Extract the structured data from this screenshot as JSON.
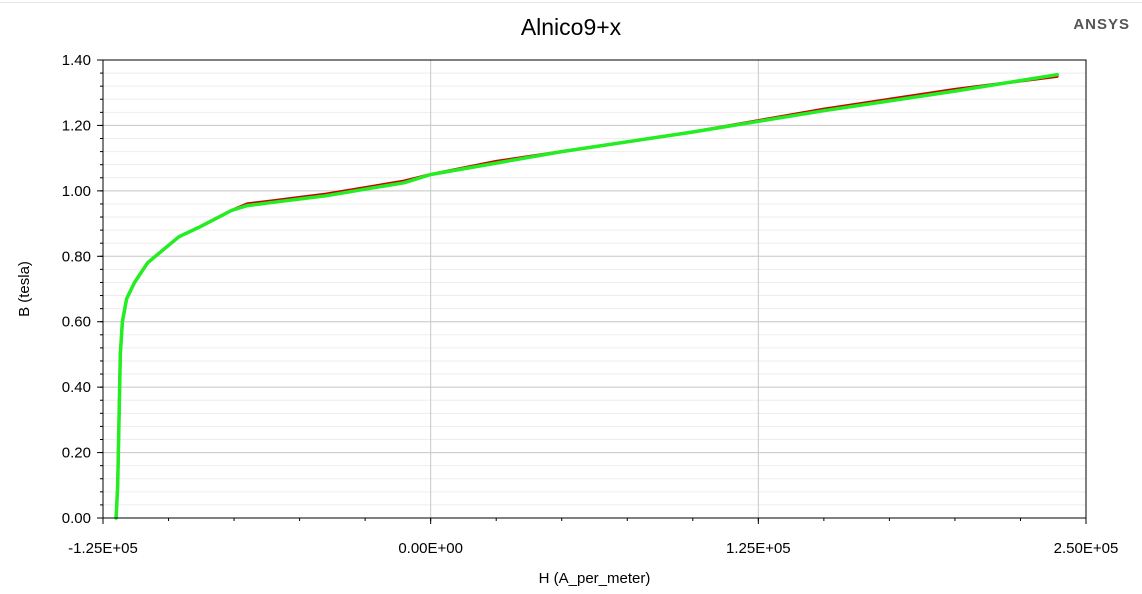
{
  "branding": {
    "logo_text": "ANSYS"
  },
  "colors": {
    "series_red": "#cc0000",
    "series_green": "#22ee22",
    "grid_major": "#c8c8c8",
    "grid_minor": "#ededed"
  },
  "chart_data": {
    "type": "line",
    "title": "Alnico9+x",
    "xlabel": "H (A_per_meter)",
    "ylabel": "B (tesla)",
    "xlim": [
      -125000,
      250000
    ],
    "ylim": [
      0,
      1.4
    ],
    "x_ticks": [
      -125000,
      0,
      125000,
      250000
    ],
    "x_tick_labels": [
      "-1.25E+05",
      "0.00E+00",
      "1.25E+05",
      "2.50E+05"
    ],
    "y_ticks": [
      0,
      0.2,
      0.4,
      0.6,
      0.8,
      1.0,
      1.2,
      1.4
    ],
    "y_tick_labels": [
      "0.00",
      "0.20",
      "0.40",
      "0.60",
      "0.80",
      "1.00",
      "1.20",
      "1.40"
    ],
    "grid": true,
    "legend": "none",
    "series": [
      {
        "color": "#cc0000",
        "x": [
          -120000,
          -119400,
          -118900,
          -118400,
          -117600,
          -116000,
          -113000,
          -108000,
          -102000,
          -96000,
          -88000,
          -76000,
          -70000,
          -60000,
          -50000,
          -40000,
          -25000,
          -10000,
          0,
          25000,
          50000,
          100000,
          150000,
          200000,
          239000
        ],
        "y": [
          0.0,
          0.1,
          0.3,
          0.5,
          0.6,
          0.67,
          0.72,
          0.78,
          0.82,
          0.86,
          0.89,
          0.94,
          0.96,
          0.97,
          0.98,
          0.99,
          1.01,
          1.03,
          1.05,
          1.09,
          1.12,
          1.18,
          1.25,
          1.31,
          1.35
        ]
      },
      {
        "color": "#22ee22",
        "x": [
          -120000,
          -119400,
          -118900,
          -118400,
          -117600,
          -116000,
          -113000,
          -108000,
          -102000,
          -96000,
          -88000,
          -76000,
          -70000,
          -60000,
          -50000,
          -40000,
          -25000,
          -10000,
          0,
          25000,
          50000,
          100000,
          150000,
          200000,
          239000
        ],
        "y": [
          0.0,
          0.1,
          0.3,
          0.5,
          0.6,
          0.67,
          0.72,
          0.78,
          0.82,
          0.86,
          0.89,
          0.94,
          0.955,
          0.965,
          0.975,
          0.985,
          1.005,
          1.025,
          1.05,
          1.085,
          1.12,
          1.18,
          1.245,
          1.305,
          1.355
        ]
      }
    ]
  }
}
